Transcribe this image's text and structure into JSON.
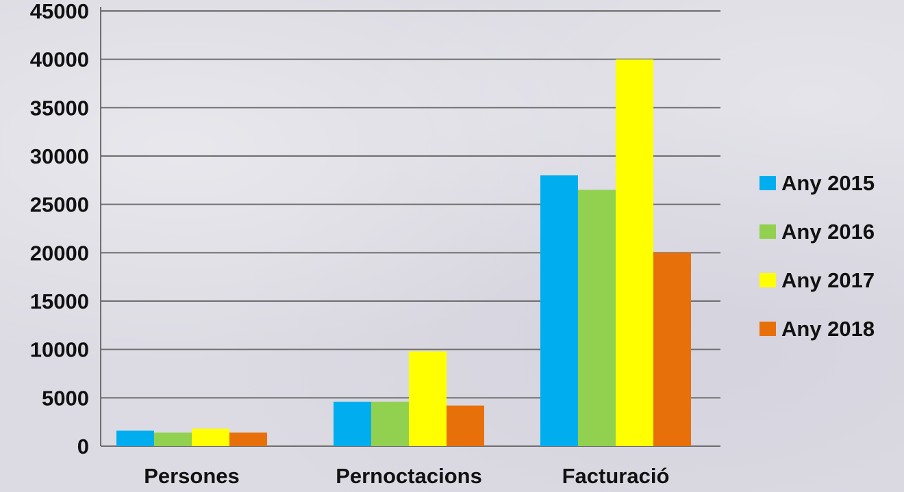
{
  "chart_data": {
    "type": "bar",
    "categories": [
      "Persones",
      "Pernoctacions",
      "Facturació"
    ],
    "series": [
      {
        "name": "Any 2015",
        "color": "#00aeef",
        "values": [
          1600,
          4600,
          28000
        ]
      },
      {
        "name": "Any 2016",
        "color": "#92d050",
        "values": [
          1400,
          4600,
          26500
        ]
      },
      {
        "name": "Any 2017",
        "color": "#ffff00",
        "values": [
          1800,
          9800,
          40000
        ]
      },
      {
        "name": "Any 2018",
        "color": "#e8700a",
        "values": [
          1400,
          4200,
          20000
        ]
      }
    ],
    "y_ticks": [
      "0",
      "5000",
      "10000",
      "15000",
      "20000",
      "25000",
      "30000",
      "35000",
      "40000",
      "45000"
    ],
    "ylim": [
      0,
      45000
    ],
    "grid": true,
    "legend": "right"
  }
}
